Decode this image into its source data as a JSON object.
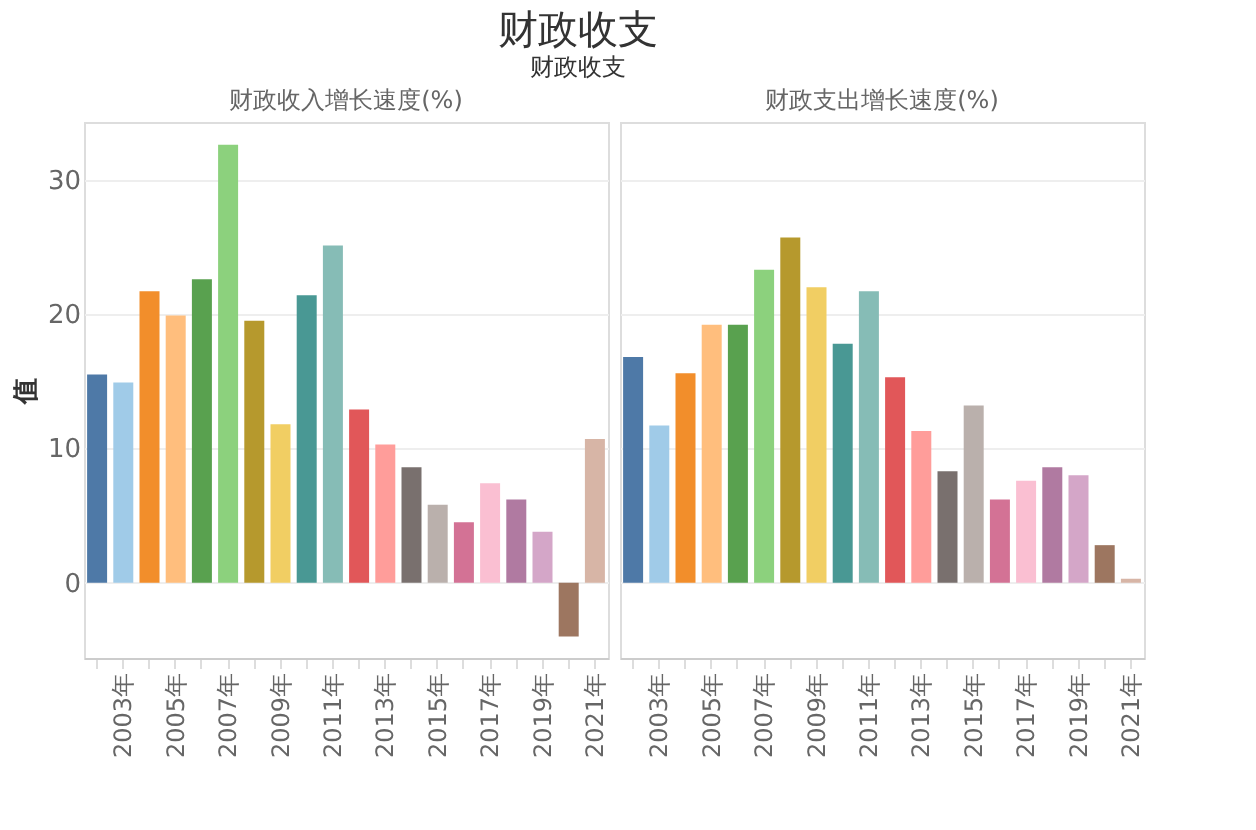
{
  "chart_data": [
    {
      "type": "bar",
      "title": "财政收入增长速度(%)",
      "annotations": [
        "财政收支",
        "财政收支"
      ],
      "ylabel": "值",
      "categories": [
        null,
        "2003年",
        null,
        "2005年",
        null,
        "2007年",
        null,
        "2009年",
        null,
        "2011年",
        null,
        "2013年",
        null,
        "2015年",
        null,
        "2017年",
        null,
        "2019年",
        null,
        "2021年"
      ],
      "values": [
        15.5,
        14.9,
        21.7,
        19.9,
        22.6,
        32.6,
        19.5,
        11.8,
        21.4,
        25.1,
        12.9,
        10.3,
        8.6,
        5.8,
        4.5,
        7.4,
        6.2,
        3.8,
        -4.0,
        10.7
      ],
      "colors": [
        "#4e79a7",
        "#a0cbe8",
        "#f28e2b",
        "#ffbe7d",
        "#59a14f",
        "#8cd17d",
        "#b6992d",
        "#f1ce63",
        "#499894",
        "#86bcb6",
        "#e15759",
        "#ff9d9a",
        "#79706e",
        "#bab0ac",
        "#d37295",
        "#fabfd2",
        "#b07aa1",
        "#d4a6c8",
        "#9d7660",
        "#d7b5a6"
      ],
      "ylim": [
        -5.6,
        34.3
      ],
      "yticks": [
        0,
        10,
        20,
        30
      ],
      "grid": "y",
      "legend": false
    },
    {
      "type": "bar",
      "title": "财政支出增长速度(%)",
      "categories": [
        null,
        "2003年",
        null,
        "2005年",
        null,
        "2007年",
        null,
        "2009年",
        null,
        "2011年",
        null,
        "2013年",
        null,
        "2015年",
        null,
        "2017年",
        null,
        "2019年",
        null,
        "2021年"
      ],
      "values": [
        16.8,
        11.7,
        15.6,
        19.2,
        19.2,
        23.3,
        25.7,
        22.0,
        17.8,
        21.7,
        15.3,
        11.3,
        8.3,
        13.2,
        6.2,
        7.6,
        8.6,
        8.0,
        2.8,
        0.3
      ],
      "colors": [
        "#4e79a7",
        "#a0cbe8",
        "#f28e2b",
        "#ffbe7d",
        "#59a14f",
        "#8cd17d",
        "#b6992d",
        "#f1ce63",
        "#499894",
        "#86bcb6",
        "#e15759",
        "#ff9d9a",
        "#79706e",
        "#bab0ac",
        "#d37295",
        "#fabfd2",
        "#b07aa1",
        "#d4a6c8",
        "#9d7660",
        "#d7b5a6"
      ],
      "ylim": [
        -5.6,
        34.3
      ],
      "yticks": [
        0,
        10,
        20,
        30
      ],
      "grid": "y",
      "legend": false,
      "tick_labels": "x"
    }
  ]
}
